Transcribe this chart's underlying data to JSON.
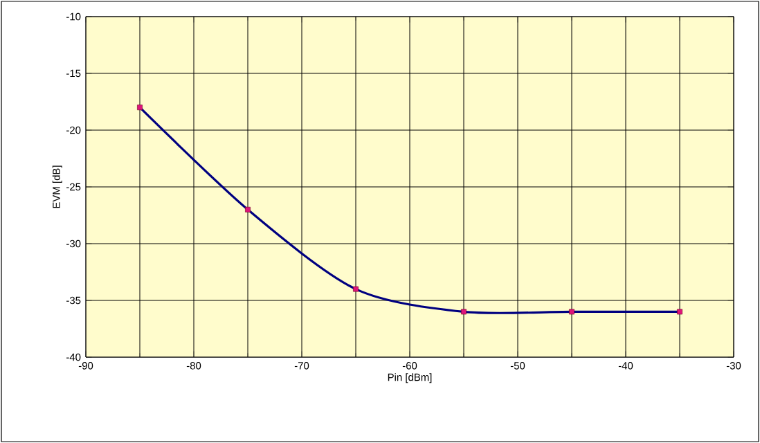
{
  "chart_data": {
    "type": "line",
    "xlabel": "Pin [dBm]",
    "ylabel": "EVM [dB]",
    "x": [
      -85,
      -75,
      -65,
      -55,
      -45,
      -35
    ],
    "series": [
      {
        "color": "#000080",
        "values": [
          -18,
          -27,
          -34,
          -36,
          -36,
          -36
        ]
      }
    ],
    "xlim": [
      -90,
      -30
    ],
    "ylim": [
      -40,
      -10
    ],
    "xticks": [
      -90,
      -80,
      -70,
      -60,
      -50,
      -40,
      -30
    ],
    "yticks": [
      -40,
      -35,
      -30,
      -25,
      -20,
      -15,
      -10
    ],
    "grid": true,
    "marker": "square",
    "line_style": "solid"
  }
}
